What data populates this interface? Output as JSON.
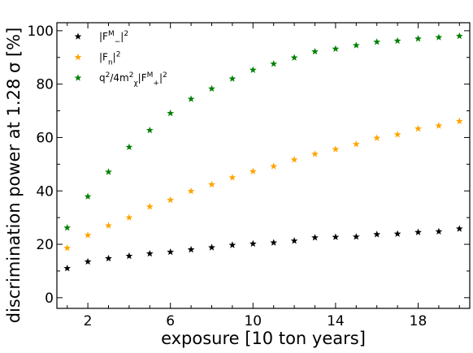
{
  "chart_data": {
    "type": "scatter",
    "title": "",
    "xlabel": "exposure [10 ton years]",
    "ylabel": "discrimination power at 1.28 σ [%]",
    "xlim": [
      0.5,
      20.5
    ],
    "ylim": [
      -4,
      103
    ],
    "xticks": [
      2,
      6,
      10,
      14,
      18
    ],
    "yticks": [
      0,
      20,
      40,
      60,
      80,
      100
    ],
    "grid": false,
    "legend_position": "top-left",
    "marker": "star",
    "x": [
      1,
      2,
      3,
      4,
      5,
      6,
      7,
      8,
      9,
      10,
      11,
      12,
      13,
      14,
      15,
      16,
      17,
      18,
      19,
      20
    ],
    "series": [
      {
        "name_parts": {
          "pre": "|F",
          "sup": "M",
          "sub": "−",
          "post": "|",
          "post_sup": "2"
        },
        "color": "#000000",
        "values": [
          11,
          13.5,
          14.7,
          15.6,
          16.5,
          17.1,
          18.0,
          18.8,
          19.7,
          20.2,
          20.6,
          21.3,
          22.5,
          22.7,
          22.8,
          23.7,
          23.9,
          24.5,
          24.8,
          25.8
        ]
      },
      {
        "name_parts": {
          "pre": "|F",
          "sup": "",
          "sub": "n",
          "post": "|",
          "post_sup": "2"
        },
        "color": "#ffa500",
        "values": [
          18.6,
          23.4,
          27.0,
          30.0,
          34.1,
          36.6,
          39.9,
          42.4,
          45.0,
          47.3,
          49.2,
          51.7,
          53.8,
          55.6,
          57.5,
          59.8,
          61.1,
          63.3,
          64.4,
          66.1
        ]
      },
      {
        "name_parts": {
          "pre": "q",
          "pre_sup": "2",
          "mid": "/4m",
          "mid_sup": "2",
          "mid_sub": "χ",
          "mid2": "|F",
          "sup": "M",
          "sub": "+",
          "post": "|",
          "post_sup": "2"
        },
        "color": "#008000",
        "values": [
          26.2,
          37.9,
          47.1,
          56.4,
          62.7,
          69.1,
          74.4,
          78.3,
          82.0,
          85.3,
          87.6,
          89.9,
          92.2,
          93.2,
          94.5,
          95.8,
          96.2,
          97.0,
          97.5,
          98.0
        ]
      }
    ]
  }
}
